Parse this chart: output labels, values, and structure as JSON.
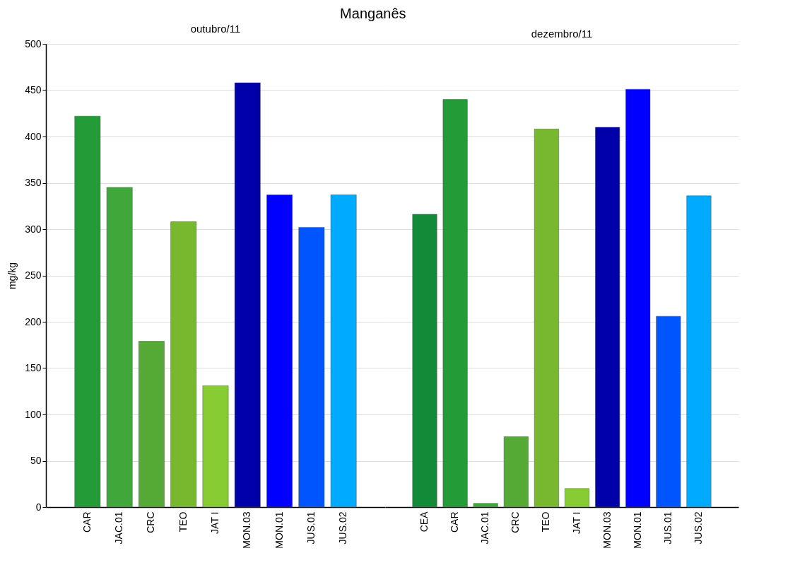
{
  "chart_data": [
    {
      "type": "bar",
      "title": "Manganês",
      "subtitle": "outubro/11",
      "ylabel": "mg/kg",
      "categories": [
        "CAR",
        "JAC.01",
        "CRC",
        "TEO",
        "JAT I",
        "MON.03",
        "MON.01",
        "JUS.01",
        "JUS.02"
      ],
      "values": [
        422,
        345,
        179,
        308,
        131,
        458,
        337,
        302,
        337
      ],
      "colors": [
        "#239b37",
        "#40a83a",
        "#55aa35",
        "#77b82f",
        "#88cc33",
        "#0000aa",
        "#0000ff",
        "#0055ff",
        "#00aaff"
      ],
      "ylim": [
        0,
        500
      ],
      "yticks": [
        0,
        50,
        100,
        150,
        200,
        250,
        300,
        350,
        400,
        450,
        500
      ],
      "grid": "y"
    },
    {
      "type": "bar",
      "title": "dezembro/11",
      "categories": [
        "CEA",
        "CAR",
        "JAC.01",
        "CRC",
        "TEO",
        "JAT I",
        "MON.03",
        "MON.01",
        "JUS.01",
        "JUS.02"
      ],
      "values": [
        316,
        440,
        4,
        76,
        408,
        20,
        410,
        451,
        206,
        336
      ],
      "colors": [
        "#138a38",
        "#239b37",
        "#40a83a",
        "#55aa35",
        "#77b82f",
        "#88cc33",
        "#0000aa",
        "#0000ff",
        "#0055ff",
        "#00aaff"
      ],
      "ylim": [
        0,
        500
      ],
      "yticks": [
        0,
        50,
        100,
        150,
        200,
        250,
        300,
        350,
        400,
        450,
        500
      ],
      "grid": "y",
      "tick_labels": "x"
    }
  ]
}
